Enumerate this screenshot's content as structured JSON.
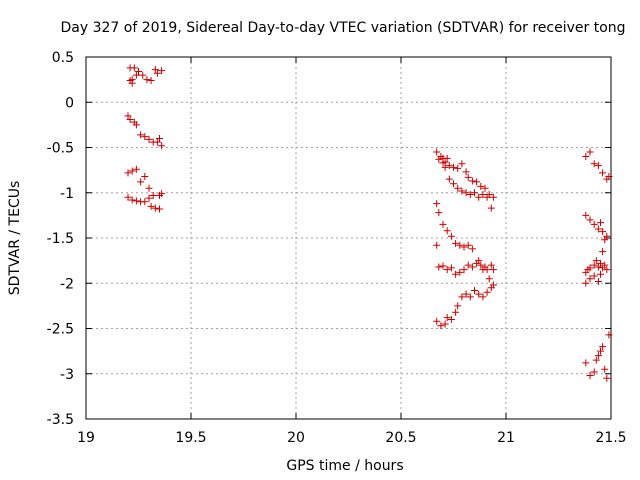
{
  "chart_data": {
    "type": "scatter",
    "title": "Day 327 of 2019, Sidereal Day-to-day VTEC variation (SDTVAR) for receiver tong",
    "xlabel": "GPS time / hours",
    "ylabel": "SDTVAR / TECUs",
    "xlim": [
      19,
      21.5
    ],
    "ylim": [
      -3.5,
      0.5
    ],
    "xticks": [
      19,
      19.5,
      20,
      20.5,
      21,
      21.5
    ],
    "xtick_labels": [
      "19",
      "19.5",
      "20",
      "20.5",
      "21",
      "21.5"
    ],
    "yticks": [
      0.5,
      0,
      -0.5,
      -1,
      -1.5,
      -2,
      -2.5,
      -3,
      -3.5
    ],
    "ytick_labels": [
      "0.5",
      "0",
      "-0.5",
      "-1",
      "-1.5",
      "-2",
      "-2.5",
      "-3",
      "-3.5"
    ],
    "grid": true,
    "marker": "+",
    "color": "#cc0000",
    "series": [
      {
        "name": "SDTVAR",
        "points": [
          [
            19.21,
            0.38
          ],
          [
            19.22,
            0.25
          ],
          [
            19.23,
            0.38
          ],
          [
            19.24,
            0.3
          ],
          [
            19.25,
            0.34
          ],
          [
            19.27,
            0.3
          ],
          [
            19.29,
            0.25
          ],
          [
            19.31,
            0.24
          ],
          [
            19.33,
            0.36
          ],
          [
            19.34,
            0.32
          ],
          [
            19.36,
            0.35
          ],
          [
            19.21,
            0.24
          ],
          [
            19.22,
            0.21
          ],
          [
            19.2,
            -0.15
          ],
          [
            19.21,
            -0.19
          ],
          [
            19.23,
            -0.22
          ],
          [
            19.24,
            -0.25
          ],
          [
            19.26,
            -0.36
          ],
          [
            19.28,
            -0.38
          ],
          [
            19.3,
            -0.41
          ],
          [
            19.32,
            -0.44
          ],
          [
            19.34,
            -0.44
          ],
          [
            19.35,
            -0.4
          ],
          [
            19.36,
            -0.48
          ],
          [
            19.2,
            -0.78
          ],
          [
            19.22,
            -0.76
          ],
          [
            19.24,
            -0.74
          ],
          [
            19.26,
            -0.88
          ],
          [
            19.28,
            -0.82
          ],
          [
            19.3,
            -0.95
          ],
          [
            19.2,
            -1.05
          ],
          [
            19.22,
            -1.08
          ],
          [
            19.24,
            -1.09
          ],
          [
            19.26,
            -1.1
          ],
          [
            19.28,
            -1.1
          ],
          [
            19.3,
            -1.06
          ],
          [
            19.31,
            -1.15
          ],
          [
            19.32,
            -1.03
          ],
          [
            19.33,
            -1.17
          ],
          [
            19.35,
            -1.03
          ],
          [
            19.35,
            -1.18
          ],
          [
            19.36,
            -1.01
          ],
          [
            20.67,
            -0.55
          ],
          [
            20.68,
            -0.63
          ],
          [
            20.69,
            -0.6
          ],
          [
            20.7,
            -0.62
          ],
          [
            20.71,
            -0.66
          ],
          [
            20.72,
            -0.62
          ],
          [
            20.73,
            -0.7
          ],
          [
            20.75,
            -0.72
          ],
          [
            20.77,
            -0.73
          ],
          [
            20.79,
            -0.68
          ],
          [
            20.81,
            -0.77
          ],
          [
            20.82,
            -0.83
          ],
          [
            20.84,
            -0.87
          ],
          [
            20.86,
            -0.88
          ],
          [
            20.88,
            -0.93
          ],
          [
            20.9,
            -0.95
          ],
          [
            20.92,
            -1.02
          ],
          [
            20.94,
            -1.05
          ],
          [
            20.7,
            -0.67
          ],
          [
            20.71,
            -0.72
          ],
          [
            20.73,
            -0.85
          ],
          [
            20.75,
            -0.9
          ],
          [
            20.77,
            -0.95
          ],
          [
            20.79,
            -0.98
          ],
          [
            20.81,
            -1.0
          ],
          [
            20.83,
            -1.02
          ],
          [
            20.85,
            -1.0
          ],
          [
            20.87,
            -1.05
          ],
          [
            20.89,
            -1.02
          ],
          [
            20.91,
            -1.05
          ],
          [
            20.93,
            -1.17
          ],
          [
            20.67,
            -1.12
          ],
          [
            20.68,
            -1.22
          ],
          [
            20.7,
            -1.35
          ],
          [
            20.72,
            -1.42
          ],
          [
            20.74,
            -1.48
          ],
          [
            20.76,
            -1.56
          ],
          [
            20.78,
            -1.58
          ],
          [
            20.8,
            -1.6
          ],
          [
            20.82,
            -1.58
          ],
          [
            20.84,
            -1.62
          ],
          [
            20.67,
            -1.58
          ],
          [
            20.68,
            -1.82
          ],
          [
            20.7,
            -1.81
          ],
          [
            20.72,
            -1.85
          ],
          [
            20.74,
            -1.83
          ],
          [
            20.76,
            -1.9
          ],
          [
            20.78,
            -1.88
          ],
          [
            20.8,
            -1.85
          ],
          [
            20.82,
            -1.8
          ],
          [
            20.84,
            -1.82
          ],
          [
            20.86,
            -1.78
          ],
          [
            20.87,
            -1.75
          ],
          [
            20.88,
            -1.8
          ],
          [
            20.89,
            -1.85
          ],
          [
            20.9,
            -1.82
          ],
          [
            20.91,
            -1.85
          ],
          [
            20.92,
            -1.95
          ],
          [
            20.93,
            -1.8
          ],
          [
            20.94,
            -1.85
          ],
          [
            20.67,
            -2.42
          ],
          [
            20.69,
            -2.47
          ],
          [
            20.71,
            -2.45
          ],
          [
            20.72,
            -2.38
          ],
          [
            20.74,
            -2.4
          ],
          [
            20.76,
            -2.32
          ],
          [
            20.77,
            -2.25
          ],
          [
            20.79,
            -2.15
          ],
          [
            20.81,
            -2.12
          ],
          [
            20.83,
            -2.15
          ],
          [
            20.85,
            -2.08
          ],
          [
            20.87,
            -2.12
          ],
          [
            20.89,
            -2.15
          ],
          [
            20.91,
            -2.1
          ],
          [
            20.93,
            -2.05
          ],
          [
            20.94,
            -2.02
          ],
          [
            21.38,
            -0.6
          ],
          [
            21.4,
            -0.55
          ],
          [
            21.42,
            -0.68
          ],
          [
            21.44,
            -0.7
          ],
          [
            21.46,
            -0.78
          ],
          [
            21.48,
            -0.85
          ],
          [
            21.49,
            -0.82
          ],
          [
            21.38,
            -1.25
          ],
          [
            21.4,
            -1.3
          ],
          [
            21.42,
            -1.35
          ],
          [
            21.44,
            -1.4
          ],
          [
            21.45,
            -1.33
          ],
          [
            21.46,
            -1.43
          ],
          [
            21.47,
            -1.52
          ],
          [
            21.48,
            -1.48
          ],
          [
            21.38,
            -1.88
          ],
          [
            21.39,
            -1.85
          ],
          [
            21.4,
            -1.83
          ],
          [
            21.42,
            -1.8
          ],
          [
            21.43,
            -1.75
          ],
          [
            21.44,
            -1.82
          ],
          [
            21.45,
            -1.78
          ],
          [
            21.46,
            -1.83
          ],
          [
            21.47,
            -1.8
          ],
          [
            21.48,
            -1.85
          ],
          [
            21.38,
            -2.0
          ],
          [
            21.4,
            -1.95
          ],
          [
            21.42,
            -1.92
          ],
          [
            21.44,
            -1.98
          ],
          [
            21.45,
            -1.9
          ],
          [
            21.46,
            -1.65
          ],
          [
            21.38,
            -2.88
          ],
          [
            21.4,
            -3.02
          ],
          [
            21.42,
            -2.98
          ],
          [
            21.43,
            -2.85
          ],
          [
            21.44,
            -2.8
          ],
          [
            21.45,
            -2.75
          ],
          [
            21.46,
            -2.7
          ],
          [
            21.47,
            -2.95
          ],
          [
            21.48,
            -3.05
          ],
          [
            21.49,
            -2.57
          ]
        ]
      }
    ]
  }
}
